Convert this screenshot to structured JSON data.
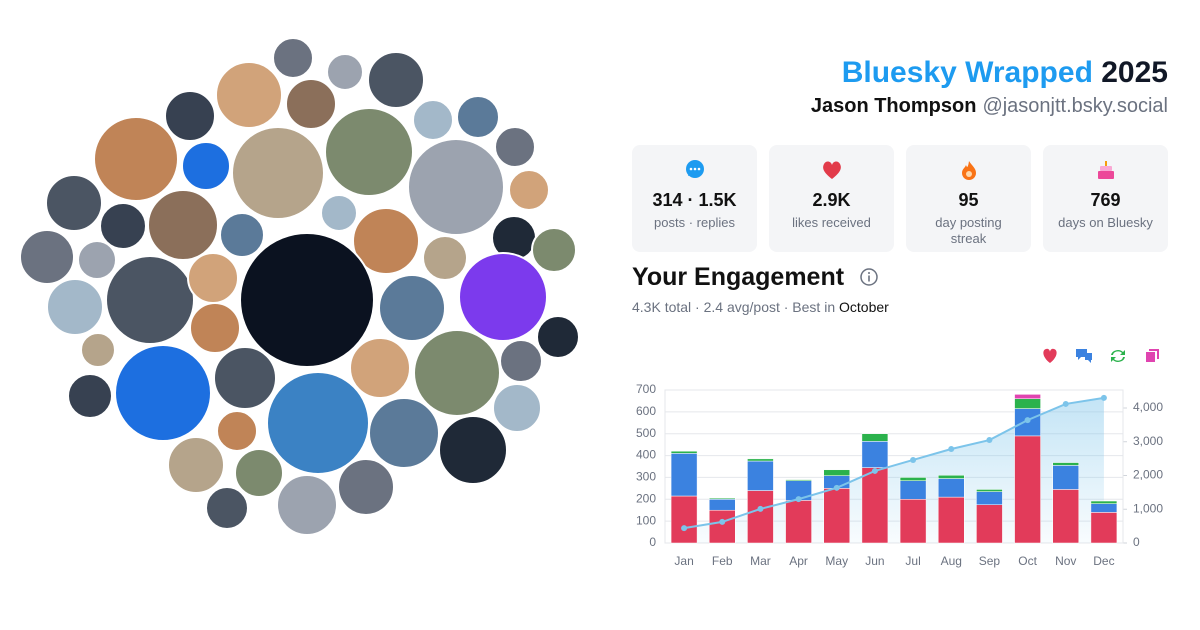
{
  "header": {
    "title": "Bluesky Wrapped",
    "year": "2025",
    "name": "Jason Thompson",
    "handle": "@jasonjtt.bsky.social"
  },
  "stats": [
    {
      "value": "314 · 1.5K",
      "label": "posts · replies"
    },
    {
      "value": "2.9K",
      "label": "likes received"
    },
    {
      "value": "95",
      "label": "day posting streak"
    },
    {
      "value": "769",
      "label": "days on Bluesky"
    }
  ],
  "engagement": {
    "title": "Your Engagement",
    "summary": "4.3K total · 2.4 avg/post · Best in",
    "best": "October"
  },
  "chart_data": {
    "type": "bar",
    "stacked": true,
    "grid": true,
    "categories": [
      "Jan",
      "Feb",
      "Mar",
      "Apr",
      "May",
      "Jun",
      "Jul",
      "Aug",
      "Sep",
      "Oct",
      "Nov",
      "Dec"
    ],
    "series": [
      {
        "color": "#e23b5a",
        "values": [
          215,
          150,
          240,
          195,
          250,
          345,
          200,
          210,
          175,
          490,
          245,
          140
        ]
      },
      {
        "color": "#3b82e0",
        "values": [
          195,
          50,
          135,
          90,
          58,
          120,
          85,
          85,
          60,
          125,
          110,
          40
        ]
      },
      {
        "color": "#2bb24c",
        "values": [
          10,
          5,
          10,
          5,
          27,
          35,
          15,
          15,
          10,
          45,
          13,
          12
        ]
      },
      {
        "color": "#e044b0",
        "values": [
          0,
          0,
          0,
          0,
          0,
          0,
          0,
          0,
          0,
          20,
          0,
          0
        ]
      },
      {
        "type": "line",
        "axis": "y2",
        "color": "#7cc4ea",
        "values": [
          440,
          625,
          1010,
          1300,
          1635,
          2135,
          2460,
          2785,
          3050,
          3640,
          4120,
          4300
        ]
      }
    ],
    "ylim": [
      0,
      700
    ],
    "yticks": [
      0,
      100,
      200,
      300,
      400,
      500,
      600,
      700
    ],
    "y2lim": [
      0,
      4533
    ],
    "y2ticks": [
      0,
      {
        "value": 1000,
        "label": "1,000"
      },
      {
        "value": 2000,
        "label": "2,000"
      },
      {
        "value": 3000,
        "label": "3,000"
      },
      {
        "value": 4000,
        "label": "4,000"
      }
    ]
  }
}
